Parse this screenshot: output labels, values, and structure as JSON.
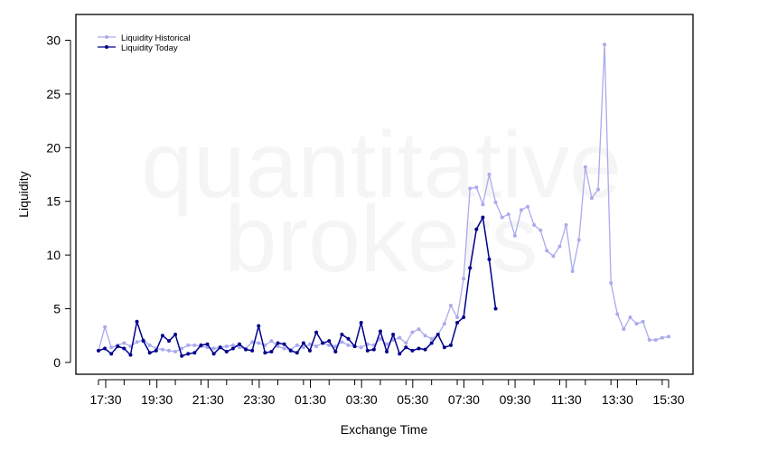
{
  "chart_data": {
    "type": "line",
    "title": "",
    "xlabel": "Exchange Time",
    "ylabel": "Liquidity",
    "ylim": [
      -1.1,
      32.4
    ],
    "yticks": [
      0,
      5,
      10,
      15,
      20,
      25,
      30
    ],
    "xticks": [
      "17:30",
      "19:30",
      "21:30",
      "23:30",
      "01:30",
      "03:30",
      "05:30",
      "07:30",
      "09:30",
      "11:30",
      "13:30",
      "15:30"
    ],
    "grid": false,
    "legend_position": "top-left",
    "watermark": [
      "quantitative",
      "brokers"
    ],
    "series": [
      {
        "name": "Liquidity Historical",
        "color": "#aaaaee",
        "values": [
          1.1,
          3.3,
          1.4,
          1.6,
          1.8,
          1.5,
          1.9,
          2.1,
          1.6,
          1.3,
          1.2,
          1.1,
          1.0,
          1.3,
          1.6,
          1.6,
          1.5,
          1.4,
          1.3,
          1.4,
          1.5,
          1.6,
          1.4,
          1.3,
          1.9,
          1.8,
          1.6,
          2.0,
          1.5,
          1.3,
          1.2,
          1.6,
          1.4,
          1.7,
          1.5,
          1.8,
          1.6,
          1.5,
          1.9,
          1.6,
          1.5,
          1.4,
          1.7,
          1.6,
          2.2,
          1.7,
          2.1,
          2.3,
          1.8,
          2.8,
          3.1,
          2.5,
          2.2,
          2.6,
          3.6,
          5.3,
          4.2,
          7.8,
          16.2,
          16.3,
          14.7,
          17.5,
          14.9,
          13.5,
          13.8,
          11.8,
          14.2,
          14.5,
          12.8,
          12.3,
          10.4,
          9.9,
          10.8,
          12.8,
          8.5,
          11.4,
          18.2,
          15.3,
          16.1,
          29.6,
          7.4,
          4.5,
          3.1,
          4.2,
          3.6,
          3.8,
          2.1,
          2.1,
          2.3,
          2.4
        ]
      },
      {
        "name": "Liquidity Today",
        "color": "#00008b",
        "values": [
          1.1,
          1.3,
          0.8,
          1.5,
          1.3,
          0.7,
          3.8,
          2.0,
          0.9,
          1.1,
          2.5,
          2.0,
          2.6,
          0.6,
          0.8,
          0.9,
          1.6,
          1.7,
          0.8,
          1.4,
          1.0,
          1.3,
          1.7,
          1.2,
          1.1,
          3.4,
          0.9,
          1.0,
          1.8,
          1.7,
          1.1,
          0.9,
          1.8,
          1.1,
          2.8,
          1.8,
          2.0,
          1.0,
          2.6,
          2.2,
          1.5,
          3.7,
          1.1,
          1.2,
          2.9,
          1.0,
          2.6,
          0.8,
          1.4,
          1.1,
          1.3,
          1.2,
          1.8,
          2.6,
          1.4,
          1.6,
          3.7,
          4.2,
          8.8,
          12.4,
          13.5,
          9.6,
          5.0
        ]
      }
    ]
  }
}
